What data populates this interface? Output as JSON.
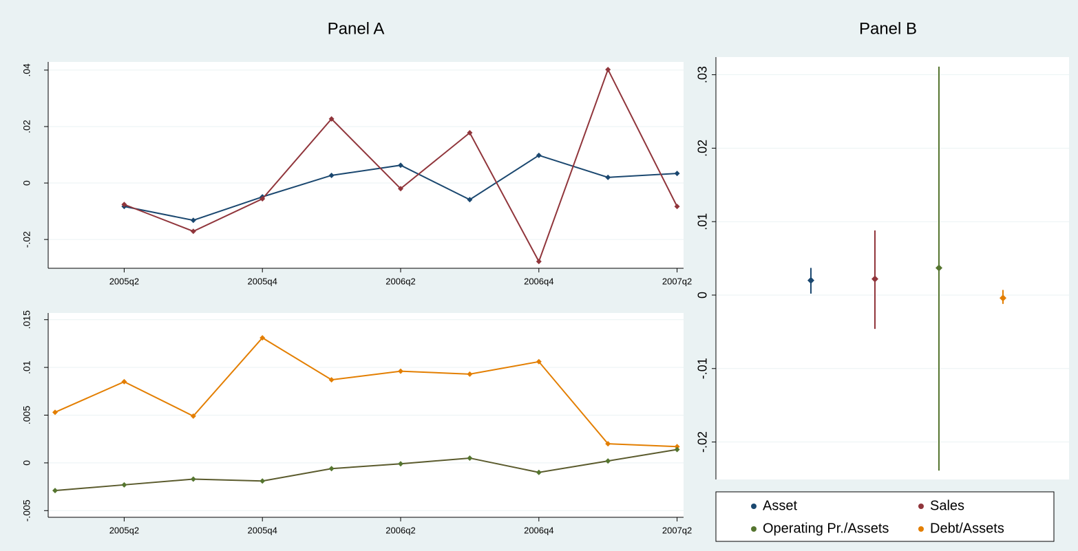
{
  "chart_data": [
    {
      "type": "line",
      "title": "Panel A",
      "categories": [
        null,
        "2005q2",
        null,
        "2005q4",
        null,
        "2006q2",
        null,
        "2006q4",
        null,
        "2007q2"
      ],
      "series": [
        {
          "color": "#1a476f",
          "values": [
            null,
            -0.0083,
            -0.0132,
            -0.0049,
            0.0027,
            0.0063,
            -0.0059,
            0.0098,
            0.002,
            0.0034
          ]
        },
        {
          "color": "#90353b",
          "values": [
            null,
            -0.0076,
            -0.0171,
            -0.0056,
            0.0227,
            -0.002,
            0.0178,
            -0.0278,
            0.0402,
            -0.0083
          ]
        }
      ],
      "ylim": [
        -0.0302,
        0.0429
      ],
      "yticks": [
        {
          "value": -0.02,
          "label": "-.02"
        },
        0,
        {
          "value": 0.02,
          "label": ".02"
        },
        {
          "value": 0.04,
          "label": ".04"
        }
      ],
      "grid": true
    },
    {
      "type": "line",
      "categories": [
        null,
        "2005q2",
        null,
        "2005q4",
        null,
        "2006q2",
        null,
        "2006q4",
        null,
        "2007q2"
      ],
      "series": [
        {
          "color": "#e37e00",
          "values": [
            0.0053,
            0.0085,
            0.0049,
            0.0131,
            0.0087,
            0.0096,
            0.0093,
            0.0106,
            0.002,
            0.0017
          ]
        },
        {
          "color": "#55752f",
          "line_color": "#5a5a2c",
          "values": [
            -0.0029,
            -0.0023,
            -0.0017,
            -0.0019,
            -0.0006,
            -0.0001,
            0.0005,
            -0.001,
            0.0002,
            0.0014
          ]
        }
      ],
      "ylim": [
        -0.0057,
        0.0157
      ],
      "yticks": [
        {
          "value": -0.005,
          "label": "-.005"
        },
        0,
        {
          "value": 0.005,
          "label": ".005"
        },
        {
          "value": 0.01,
          "label": ".01"
        },
        {
          "value": 0.015,
          "label": ".015"
        }
      ],
      "grid": true
    },
    {
      "type": "errorbar",
      "title": "Panel B",
      "series": [
        {
          "name": "Asset",
          "color": "#1a476f",
          "values": [
            0.002
          ],
          "lower": [
            0.0002
          ],
          "upper": [
            0.0037
          ]
        },
        {
          "name": "Sales",
          "color": "#90353b",
          "values": [
            0.0022
          ],
          "lower": [
            -0.0046
          ],
          "upper": [
            0.0088
          ]
        },
        {
          "name": "Operating Pr./Assets",
          "color": "#55752f",
          "values": [
            0.0037
          ],
          "lower": [
            -0.0239
          ],
          "upper": [
            0.0311
          ]
        },
        {
          "name": "Debt/Assets",
          "color": "#e37e00",
          "values": [
            -0.0004
          ],
          "lower": [
            -0.0012
          ],
          "upper": [
            0.0007
          ]
        }
      ],
      "ylim": [
        -0.0251,
        0.0324
      ],
      "yticks": [
        {
          "value": -0.02,
          "label": "-.02"
        },
        {
          "value": -0.01,
          "label": "-.01"
        },
        0,
        {
          "value": 0.01,
          "label": ".01"
        },
        {
          "value": 0.02,
          "label": ".02"
        },
        {
          "value": 0.03,
          "label": ".03"
        }
      ],
      "grid": true,
      "legend": "bottom"
    }
  ]
}
